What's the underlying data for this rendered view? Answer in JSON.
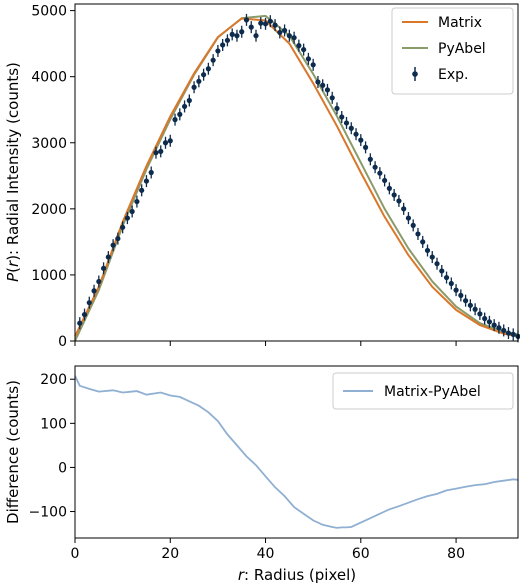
{
  "chart_data": [
    {
      "type": "line",
      "xlabel_prefix": "r",
      "xlabel_rest": ": Radius (pixel)",
      "ylabel_fn": "P",
      "ylabel_arg": "r",
      "ylabel_rest": ": Radial Intensity (counts)",
      "xlim": [
        0,
        93
      ],
      "ylim": [
        0,
        5100
      ],
      "yticks": [
        0,
        1000,
        2000,
        3000,
        4000,
        5000
      ],
      "xticks": [
        0,
        20,
        40,
        60,
        80
      ],
      "legend_position": "top-right",
      "legend": [
        "Matrix",
        "PyAbel",
        "Exp."
      ],
      "colors": {
        "matrix": "#d9772b",
        "pyabel": "#8a9a68",
        "exp": "#0d2b4d"
      },
      "series": [
        {
          "name": "Matrix",
          "x": [
            0,
            5,
            10,
            15,
            20,
            25,
            30,
            35,
            40,
            45,
            50,
            55,
            60,
            65,
            70,
            75,
            80,
            85,
            90,
            93
          ],
          "y": [
            70,
            820,
            1800,
            2650,
            3400,
            4050,
            4600,
            4880,
            4850,
            4500,
            3900,
            3250,
            2550,
            1880,
            1300,
            820,
            470,
            240,
            110,
            70
          ]
        },
        {
          "name": "PyAbel",
          "x": [
            0,
            5,
            10,
            15,
            20,
            25,
            30,
            35,
            40,
            45,
            50,
            55,
            60,
            65,
            70,
            75,
            80,
            85,
            90,
            93
          ],
          "y": [
            0,
            770,
            1740,
            2600,
            3355,
            4030,
            4595,
            4885,
            4920,
            4620,
            4040,
            3400,
            2700,
            2000,
            1400,
            900,
            520,
            270,
            140,
            100
          ]
        },
        {
          "name": "Exp.",
          "x": [
            1,
            2,
            3,
            4,
            5,
            6,
            7,
            8,
            9,
            10,
            11,
            12,
            13,
            14,
            15,
            16,
            17,
            18,
            19,
            20,
            21,
            22,
            23,
            24,
            25,
            26,
            27,
            28,
            29,
            30,
            31,
            32,
            33,
            34,
            35,
            36,
            37,
            38,
            39,
            40,
            41,
            42,
            43,
            44,
            45,
            46,
            47,
            48,
            49,
            50,
            51,
            52,
            53,
            54,
            55,
            56,
            57,
            58,
            59,
            60,
            61,
            62,
            63,
            64,
            65,
            66,
            67,
            68,
            69,
            70,
            71,
            72,
            73,
            74,
            75,
            76,
            77,
            78,
            79,
            80,
            81,
            82,
            83,
            84,
            85,
            86,
            87,
            88,
            89,
            90,
            91,
            92,
            93
          ],
          "y": [
            270,
            400,
            580,
            760,
            900,
            1100,
            1270,
            1450,
            1550,
            1720,
            1860,
            1960,
            2110,
            2280,
            2420,
            2550,
            2850,
            2870,
            3000,
            3030,
            3350,
            3430,
            3550,
            3640,
            3840,
            3930,
            4030,
            4120,
            4250,
            4390,
            4480,
            4550,
            4640,
            4620,
            4680,
            4860,
            4750,
            4620,
            4810,
            4800,
            4840,
            4780,
            4670,
            4700,
            4620,
            4590,
            4470,
            4410,
            4270,
            4180,
            3920,
            3870,
            3800,
            3680,
            3520,
            3390,
            3300,
            3220,
            3130,
            3040,
            2930,
            2750,
            2630,
            2540,
            2430,
            2310,
            2210,
            2120,
            2000,
            1860,
            1750,
            1620,
            1500,
            1370,
            1270,
            1170,
            1060,
            960,
            870,
            770,
            690,
            610,
            540,
            480,
            410,
            340,
            290,
            240,
            200,
            160,
            120,
            100,
            70
          ]
        }
      ]
    },
    {
      "type": "line",
      "xlabel_prefix": "r",
      "xlabel_rest": ": Radius (pixel)",
      "ylabel": "Difference (counts)",
      "xlim": [
        0,
        93
      ],
      "ylim": [
        -160,
        230
      ],
      "yticks": [
        -100,
        0,
        100,
        200
      ],
      "xticks": [
        0,
        20,
        40,
        60,
        80
      ],
      "legend_position": "top-right",
      "legend": [
        "Matrix-PyAbel"
      ],
      "colors": {
        "diff": "#8fb0d2"
      },
      "series": [
        {
          "name": "Matrix-PyAbel",
          "x": [
            0,
            1,
            3,
            5,
            8,
            10,
            13,
            15,
            18,
            20,
            22,
            24,
            26,
            28,
            30,
            32,
            34,
            36,
            38,
            40,
            42,
            44,
            46,
            48,
            50,
            52,
            54,
            55,
            56,
            57,
            58,
            60,
            62,
            64,
            66,
            68,
            70,
            72,
            74,
            76,
            78,
            80,
            82,
            84,
            86,
            88,
            90,
            92,
            93
          ],
          "y": [
            208,
            185,
            178,
            172,
            175,
            170,
            173,
            165,
            170,
            163,
            160,
            150,
            140,
            125,
            105,
            75,
            50,
            25,
            5,
            -20,
            -45,
            -65,
            -90,
            -105,
            -120,
            -130,
            -135,
            -137,
            -136,
            -136,
            -135,
            -125,
            -115,
            -105,
            -95,
            -88,
            -80,
            -72,
            -65,
            -60,
            -52,
            -48,
            -44,
            -40,
            -38,
            -33,
            -30,
            -27,
            -28
          ]
        }
      ]
    }
  ]
}
